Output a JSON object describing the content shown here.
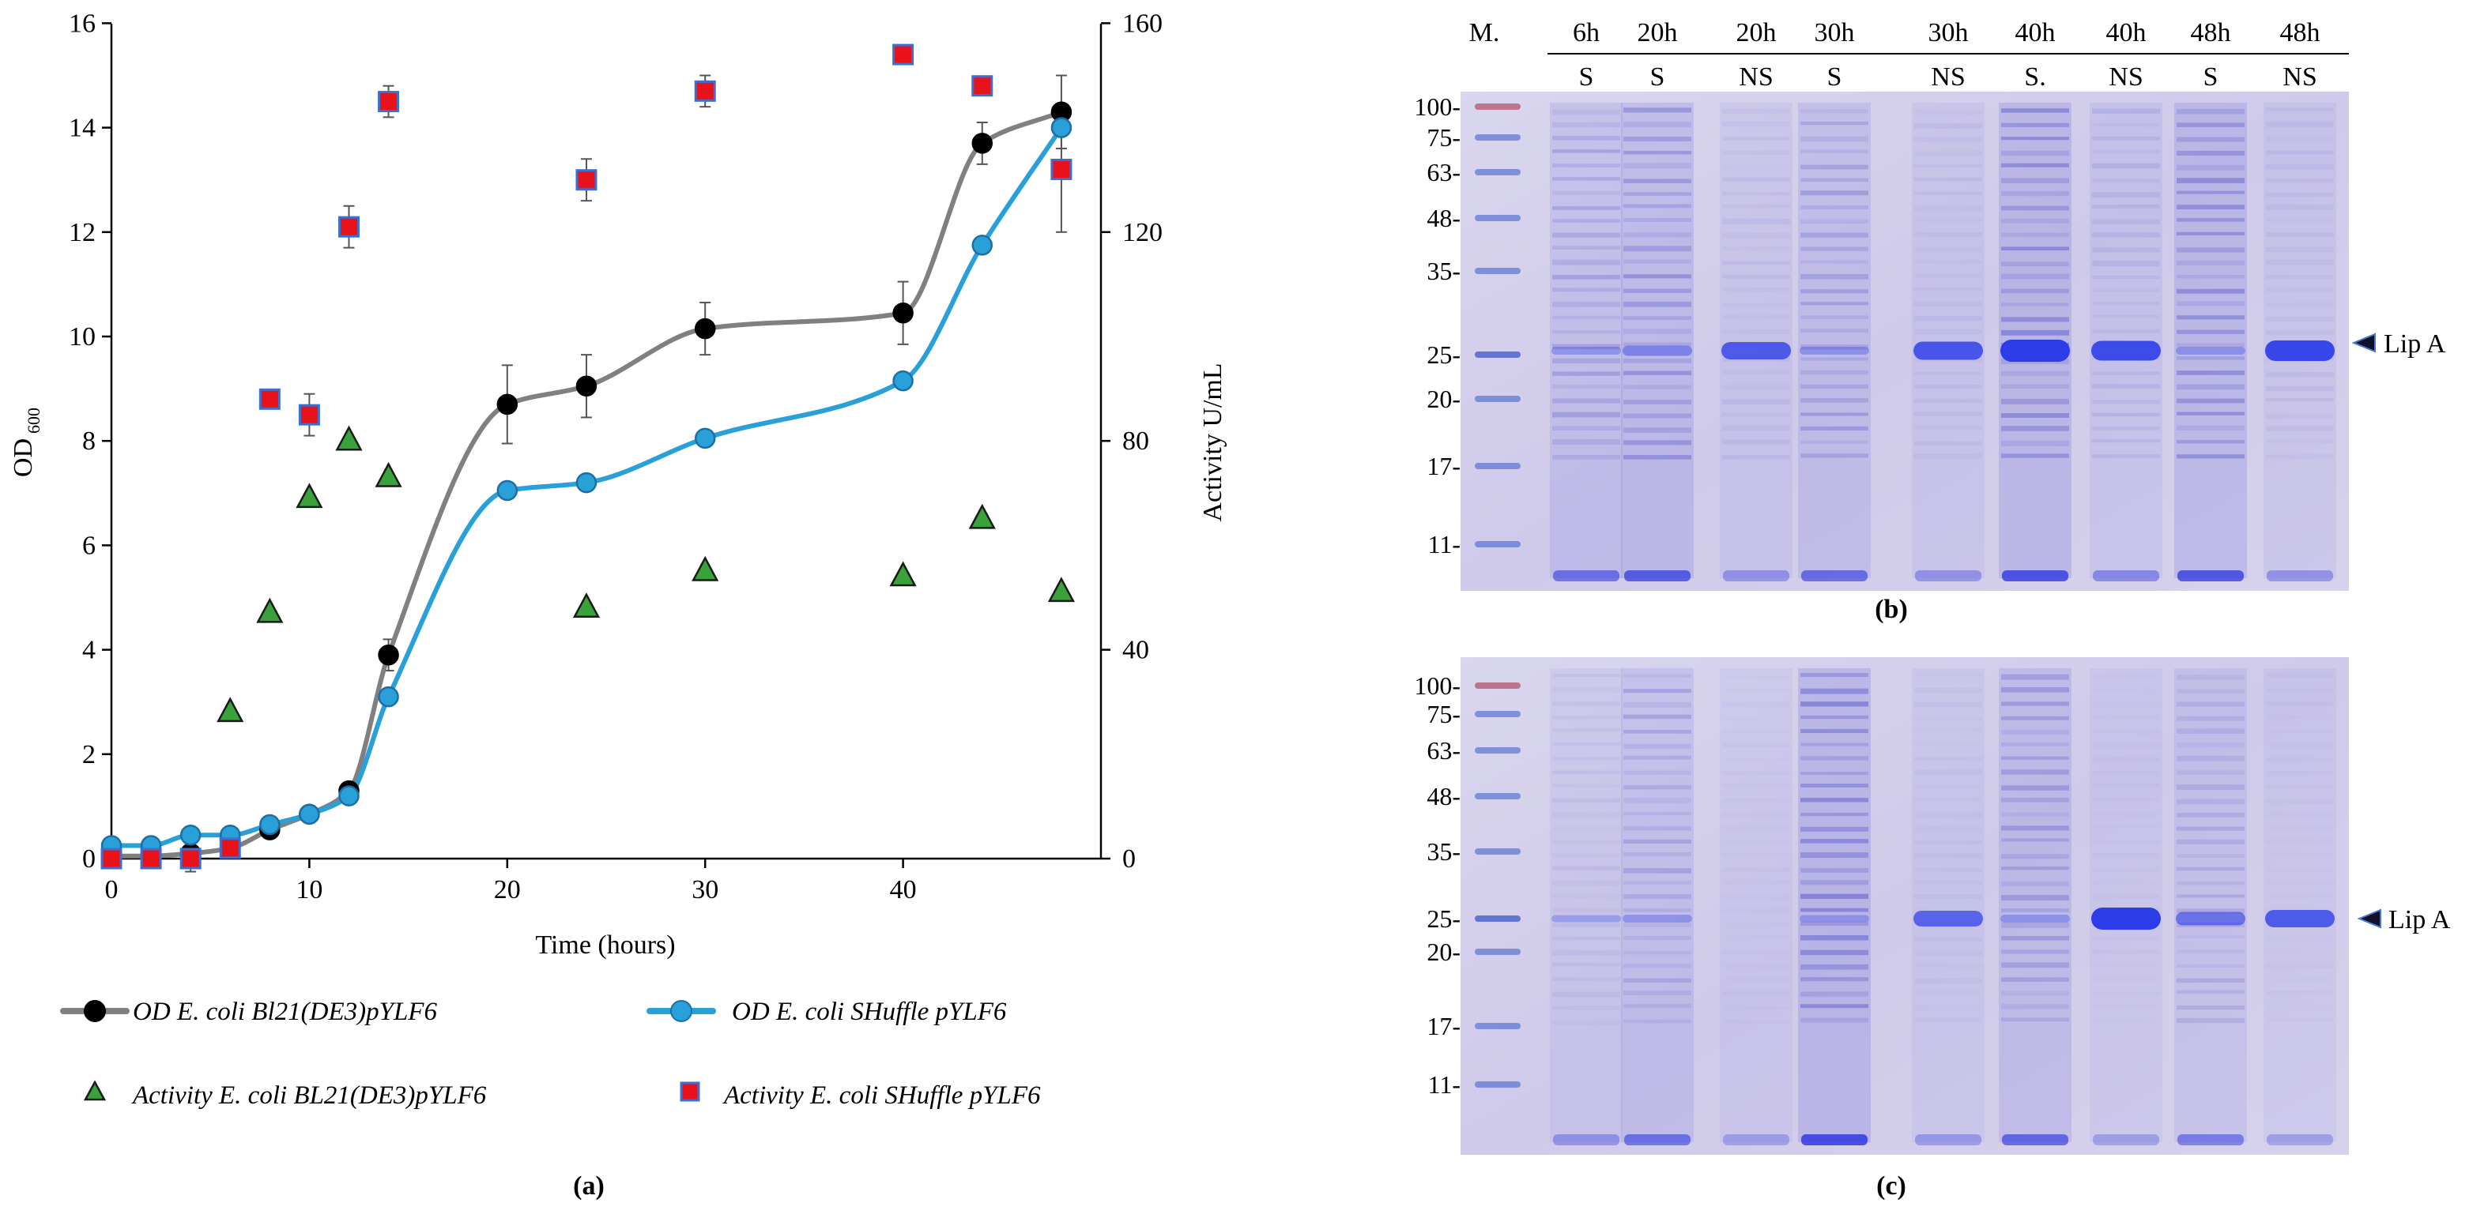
{
  "chart_data": {
    "type": "line",
    "title": "",
    "xlabel": "Time (hours)",
    "ylabel": "OD",
    "ylabel_sub": "600",
    "y2label": "Activity U/mL",
    "xlim": [
      0,
      50
    ],
    "ylim": [
      0,
      16
    ],
    "y2lim": [
      0,
      160
    ],
    "x_ticks": [
      "0",
      "10",
      "20",
      "30",
      "40"
    ],
    "y_ticks": [
      "0",
      "2",
      "4",
      "6",
      "8",
      "10",
      "12",
      "14",
      "16"
    ],
    "y2_ticks": [
      "0",
      "40",
      "80",
      "120",
      "160"
    ],
    "series": [
      {
        "name": "OD E. coli Bl21(DE3)pYLF6",
        "axis": "left",
        "kind": "line",
        "color": "#808080",
        "marker": "circle",
        "marker_fill": "#000000",
        "x": [
          0,
          2,
          4,
          6,
          8,
          10,
          12,
          14,
          20,
          24,
          30,
          40,
          44,
          48
        ],
        "values": [
          0.05,
          0.05,
          0.1,
          0.2,
          0.55,
          0.85,
          1.3,
          3.9,
          8.7,
          9.05,
          10.15,
          10.45,
          13.7,
          14.3
        ],
        "errors": [
          0,
          0,
          0.35,
          0,
          0,
          0,
          0,
          0.3,
          0.75,
          0.6,
          0.5,
          0.6,
          0.4,
          0.7
        ]
      },
      {
        "name": "OD E. coli SHuffle pYLF6",
        "axis": "left",
        "kind": "line",
        "color": "#2aa0d8",
        "marker": "circle",
        "marker_fill": "#2aa0d8",
        "x": [
          0,
          2,
          4,
          6,
          8,
          10,
          12,
          14,
          20,
          24,
          30,
          40,
          44,
          48
        ],
        "values": [
          0.25,
          0.25,
          0.45,
          0.45,
          0.65,
          0.85,
          1.2,
          3.1,
          7.05,
          7.2,
          8.05,
          9.15,
          11.75,
          14.0
        ],
        "errors": [
          0,
          0,
          0,
          0,
          0,
          0,
          0,
          0,
          0,
          0,
          0,
          0,
          0,
          0
        ]
      },
      {
        "name": "Activity E. coli BL21(DE3)pYLF6",
        "axis": "right",
        "kind": "scatter",
        "color": "#3aa23a",
        "marker": "triangle",
        "x": [
          6,
          8,
          10,
          12,
          14,
          24,
          30,
          40,
          44,
          48
        ],
        "values": [
          28,
          47,
          69,
          80,
          73,
          48,
          55,
          54,
          65,
          51
        ]
      },
      {
        "name": "Activity E. coli SHuffle pYLF6",
        "axis": "right",
        "kind": "scatter",
        "color": "#e8121a",
        "marker": "square",
        "x": [
          0,
          2,
          4,
          6,
          8,
          10,
          12,
          14,
          24,
          30,
          40,
          44,
          48
        ],
        "values": [
          0,
          0,
          0,
          2,
          88,
          85,
          121,
          145,
          130,
          147,
          154,
          148,
          132
        ],
        "errors": [
          0,
          0,
          0,
          0,
          0,
          4,
          4,
          3,
          4,
          3,
          0,
          0,
          12
        ]
      }
    ]
  },
  "legend": [
    {
      "kind": "line",
      "text": "OD E. coli Bl21(DE3)pYLF6"
    },
    {
      "kind": "line",
      "text": "OD E. coli SHuffle pYLF6"
    },
    {
      "kind": "triangle",
      "text": "Activity E. coli BL21(DE3)pYLF6"
    },
    {
      "kind": "square",
      "text": "Activity E. coli SHuffle pYLF6"
    }
  ],
  "panel_labels": {
    "a": "(a)",
    "b": "(b)",
    "c": "(c)"
  },
  "gels": {
    "marker_label": "M.",
    "time_labels": [
      "6h",
      "20h",
      "20h",
      "30h",
      "30h",
      "40h",
      "40h",
      "48h",
      "48h"
    ],
    "fraction_labels": [
      "S",
      "S",
      "NS",
      "S",
      "NS",
      "S.",
      "NS",
      "S",
      "NS"
    ],
    "size_markers": [
      "100-",
      "75-",
      "63-",
      "48-",
      "35-",
      "25-",
      "20-",
      "17-",
      "11-"
    ],
    "band_label": "Lip A",
    "lane_b_dark": [
      0.45,
      0.65,
      0.15,
      0.5,
      0.15,
      0.75,
      0.25,
      0.7,
      0.15
    ],
    "lane_b_lipA": [
      0.1,
      0.25,
      0.7,
      0.1,
      0.75,
      1.0,
      0.85,
      0.1,
      0.9
    ],
    "lane_c_dark": [
      0.15,
      0.45,
      0.05,
      0.8,
      0.1,
      0.55,
      0.05,
      0.35,
      0.05
    ],
    "lane_c_lipA": [
      0.05,
      0.1,
      0.0,
      0.05,
      0.6,
      0.1,
      1.0,
      0.45,
      0.7
    ]
  }
}
